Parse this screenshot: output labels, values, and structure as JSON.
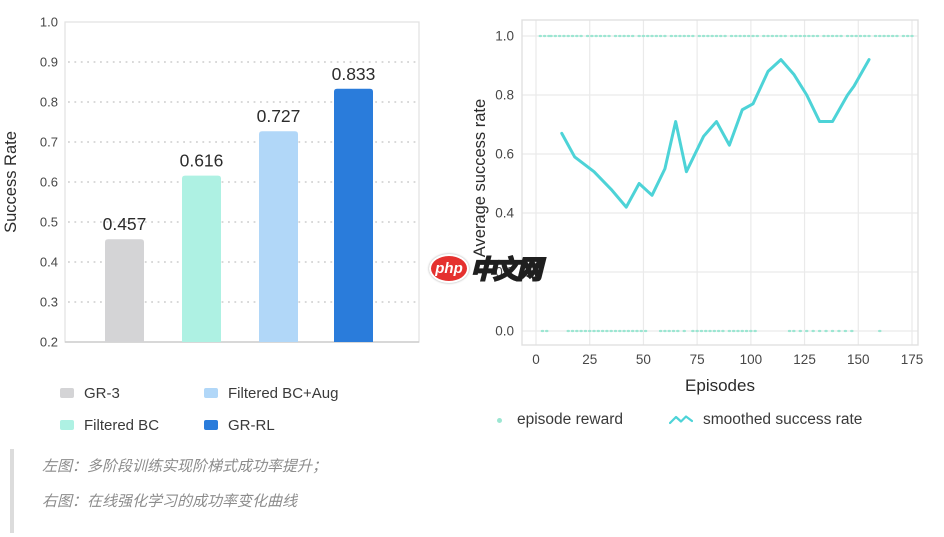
{
  "watermark": {
    "badge": "php",
    "text": "中文网",
    "badge_color": "#e5312f"
  },
  "caption": {
    "line1": "左图：多阶段训练实现阶梯式成功率提升；",
    "line2": "右图：在线强化学习的成功率变化曲线"
  },
  "chart_data": [
    {
      "type": "bar",
      "title": "",
      "xlabel": "",
      "ylabel": "Success Rate",
      "ylim": [
        0.2,
        1.0
      ],
      "yticks": [
        0.2,
        0.3,
        0.4,
        0.5,
        0.6,
        0.7,
        0.8,
        0.9,
        1.0
      ],
      "grid": "dotted-horizontal",
      "categories": [
        "GR-3",
        "Filtered BC",
        "Filtered BC+Aug",
        "GR-RL"
      ],
      "values": [
        0.457,
        0.616,
        0.727,
        0.833
      ],
      "value_labels": [
        "0.457",
        "0.616",
        "0.727",
        "0.833"
      ],
      "bar_colors": [
        "#d4d4d6",
        "#aef1e3",
        "#b1d7f8",
        "#2a7cdb"
      ],
      "legend": [
        {
          "label": "GR-3",
          "color": "#d4d4d6"
        },
        {
          "label": "Filtered BC+Aug",
          "color": "#b1d7f8"
        },
        {
          "label": "Filtered BC",
          "color": "#aef1e3"
        },
        {
          "label": "GR-RL",
          "color": "#2a7cdb"
        }
      ],
      "colors": {
        "grid": "#d9d9d9",
        "border": "#e3e3e3",
        "axis": "#c6c6c6",
        "tick_text": "#474747",
        "label_text": "#2c2c2c"
      }
    },
    {
      "type": "line",
      "title": "",
      "xlabel": "Episodes",
      "ylabel": "Average success rate",
      "xlim": [
        0,
        175
      ],
      "ylim": [
        0.0,
        1.0
      ],
      "xticks": [
        0,
        25,
        50,
        75,
        100,
        125,
        150,
        175
      ],
      "yticks": [
        0.0,
        0.2,
        0.4,
        0.6,
        0.8,
        1.0
      ],
      "grid": "solid-both",
      "legend": [
        {
          "label": "episode reward",
          "marker": "dot"
        },
        {
          "label": "smoothed success rate",
          "marker": "line"
        }
      ],
      "series": [
        {
          "name": "smoothed success rate",
          "color": "#4dd3d7",
          "points": [
            [
              12,
              0.67
            ],
            [
              18,
              0.59
            ],
            [
              27,
              0.54
            ],
            [
              35,
              0.48
            ],
            [
              42,
              0.42
            ],
            [
              48,
              0.5
            ],
            [
              54,
              0.46
            ],
            [
              60,
              0.55
            ],
            [
              65,
              0.71
            ],
            [
              70,
              0.54
            ],
            [
              78,
              0.66
            ],
            [
              84,
              0.71
            ],
            [
              90,
              0.63
            ],
            [
              96,
              0.75
            ],
            [
              101,
              0.77
            ],
            [
              108,
              0.88
            ],
            [
              114,
              0.92
            ],
            [
              120,
              0.87
            ],
            [
              126,
              0.8
            ],
            [
              132,
              0.71
            ],
            [
              138,
              0.71
            ],
            [
              145,
              0.8
            ],
            [
              148,
              0.83
            ],
            [
              155,
              0.92
            ]
          ]
        }
      ],
      "scatter": {
        "name": "episode reward",
        "color": "#9ce6d2",
        "reward_one_x": [
          2,
          4,
          6,
          7,
          9,
          11,
          13,
          15,
          17,
          19,
          21,
          24,
          26,
          28,
          30,
          32,
          34,
          37,
          39,
          41,
          43,
          45,
          48,
          50,
          52,
          54,
          56,
          58,
          60,
          63,
          65,
          67,
          69,
          71,
          73,
          76,
          78,
          80,
          82,
          84,
          86,
          88,
          91,
          93,
          95,
          97,
          99,
          101,
          103,
          106,
          108,
          110,
          112,
          114,
          116,
          119,
          121,
          123,
          125,
          127,
          129,
          131,
          134,
          136,
          138,
          140,
          142,
          145,
          147,
          149,
          151,
          153,
          155,
          158,
          160,
          162,
          164,
          166,
          168,
          171,
          173,
          175
        ],
        "reward_zero_x": [
          3,
          5,
          15,
          17,
          19,
          21,
          23,
          25,
          27,
          29,
          31,
          33,
          35,
          37,
          39,
          41,
          43,
          45,
          47,
          49,
          51,
          58,
          60,
          62,
          64,
          66,
          69,
          73,
          75,
          77,
          79,
          81,
          83,
          85,
          87,
          90,
          92,
          94,
          96,
          98,
          100,
          102,
          118,
          120,
          123,
          126,
          129,
          132,
          135,
          138,
          141,
          144,
          147,
          160
        ]
      },
      "colors": {
        "grid": "#eaeaea",
        "border": "#e0e0e0",
        "tick_text": "#474747",
        "label_text": "#2b2b2b"
      }
    }
  ]
}
